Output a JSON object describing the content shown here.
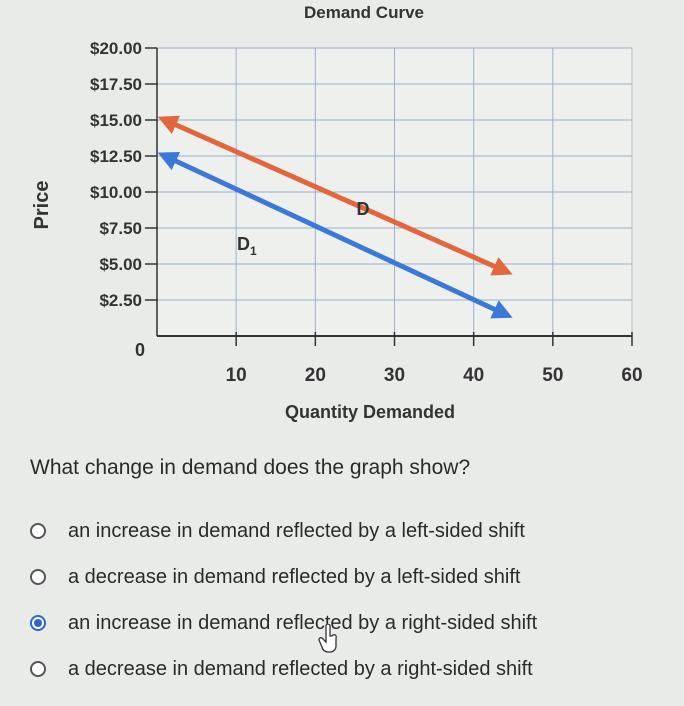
{
  "chart_data": {
    "type": "line",
    "title": "Demand Curve",
    "xlabel": "Quantity Demanded",
    "ylabel": "Price",
    "xlim": [
      0,
      60
    ],
    "ylim": [
      0,
      20
    ],
    "x_ticks": [
      "10",
      "20",
      "30",
      "40",
      "50",
      "60"
    ],
    "y_ticks": [
      "$2.50",
      "$5.00",
      "$7.50",
      "$10.00",
      "$12.50",
      "$15.00",
      "$17.50",
      "$20.00"
    ],
    "origin_label": "0",
    "grid": true,
    "series": [
      {
        "name": "D",
        "color": "#e2673f",
        "points": [
          [
            0,
            15
          ],
          [
            44,
            4.5
          ]
        ]
      },
      {
        "name": "D1",
        "color": "#3b78d8",
        "points": [
          [
            0,
            12.5
          ],
          [
            44,
            1.5
          ]
        ]
      }
    ]
  },
  "question": {
    "text": "What change in demand does the graph show?",
    "options": [
      {
        "label": "an increase in demand reflected by a left-sided shift",
        "selected": false
      },
      {
        "label": "a decrease in demand reflected by a left-sided shift",
        "selected": false
      },
      {
        "label": "an increase in demand reflected by a right-sided shift",
        "selected": true
      },
      {
        "label": "a decrease in demand reflected by a right-sided shift",
        "selected": false
      }
    ]
  },
  "cursor": {
    "icon": "hand-pointer-icon"
  }
}
